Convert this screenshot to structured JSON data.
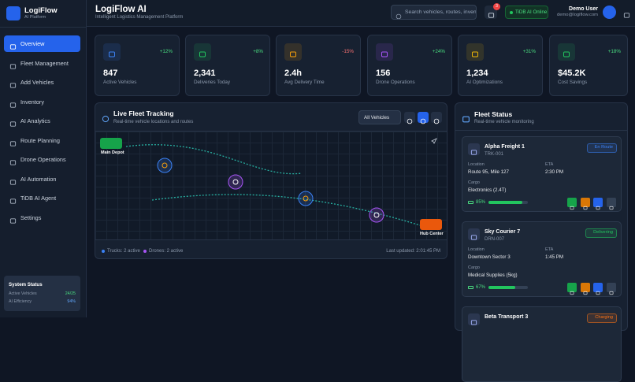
{
  "sidebar": {
    "brand": "LogiFlow",
    "tagline": "AI Platform",
    "nav": [
      "Overview",
      "Fleet Management",
      "Add Vehicles",
      "Inventory",
      "AI Analytics",
      "Route Planning",
      "Drone Operations",
      "AI Automation",
      "TiDB AI Agent",
      "Settings"
    ],
    "system_status": {
      "title": "System Status",
      "rows": [
        [
          "Active Vehicles",
          "24/25"
        ],
        [
          "AI Efficiency",
          "94%"
        ]
      ]
    }
  },
  "header": {
    "title": "LogiFlow AI",
    "subtitle": "Intelligent Logistics Management Platform",
    "search_placeholder": "Search vehicles, routes, inventory...",
    "notifications": "3",
    "ai_status": "TiDB AI Online",
    "user_name": "Demo User",
    "user_email": "demo@logiflow.com"
  },
  "stats": [
    {
      "value": "847",
      "label": "Active Vehicles",
      "change": "+12%",
      "color": "#3b82f6"
    },
    {
      "value": "2,341",
      "label": "Deliveries Today",
      "change": "+8%",
      "color": "#22c55e"
    },
    {
      "value": "2.4h",
      "label": "Avg Delivery Time",
      "change": "-15%",
      "color": "#f59e0b"
    },
    {
      "value": "156",
      "label": "Drone Operations",
      "change": "+24%",
      "color": "#a855f7"
    },
    {
      "value": "1,234",
      "label": "AI Optimizations",
      "change": "+31%",
      "color": "#eab308"
    },
    {
      "value": "$45.2K",
      "label": "Cost Savings",
      "change": "+18%",
      "color": "#22c55e"
    }
  ],
  "map": {
    "title": "Live Fleet Tracking",
    "subtitle": "Real-time vehicle locations and routes",
    "filter": "All Vehicles",
    "origin": "Main Depot",
    "destination": "Hub Center",
    "trucks": "Trucks: 2 active",
    "drones": "Drones: 2 active",
    "updated": "Last updated: 2:01:45 PM"
  },
  "fleet": {
    "title": "Fleet Status",
    "subtitle": "Real-time vehicle monitoring",
    "location_label": "Location",
    "eta_label": "ETA",
    "cargo_label": "Cargo",
    "vehicles": [
      {
        "name": "Alpha Freight 1",
        "id": "TRK-001",
        "status": "En Route",
        "status_color": "#3b82f6",
        "location": "Route 95, Mile 127",
        "eta": "2:30 PM",
        "cargo": "Electronics (2.4T)",
        "battery": 85,
        "battery_label": "85%"
      },
      {
        "name": "Sky Courier 7",
        "id": "DRN-007",
        "status": "Delivering",
        "status_color": "#22c55e",
        "location": "Downtown Sector 3",
        "eta": "1:45 PM",
        "cargo": "Medical Supplies (5kg)",
        "battery": 67,
        "battery_label": "67%"
      },
      {
        "name": "Beta Transport 3",
        "status": "Charging",
        "status_color": "#f97316"
      }
    ]
  }
}
